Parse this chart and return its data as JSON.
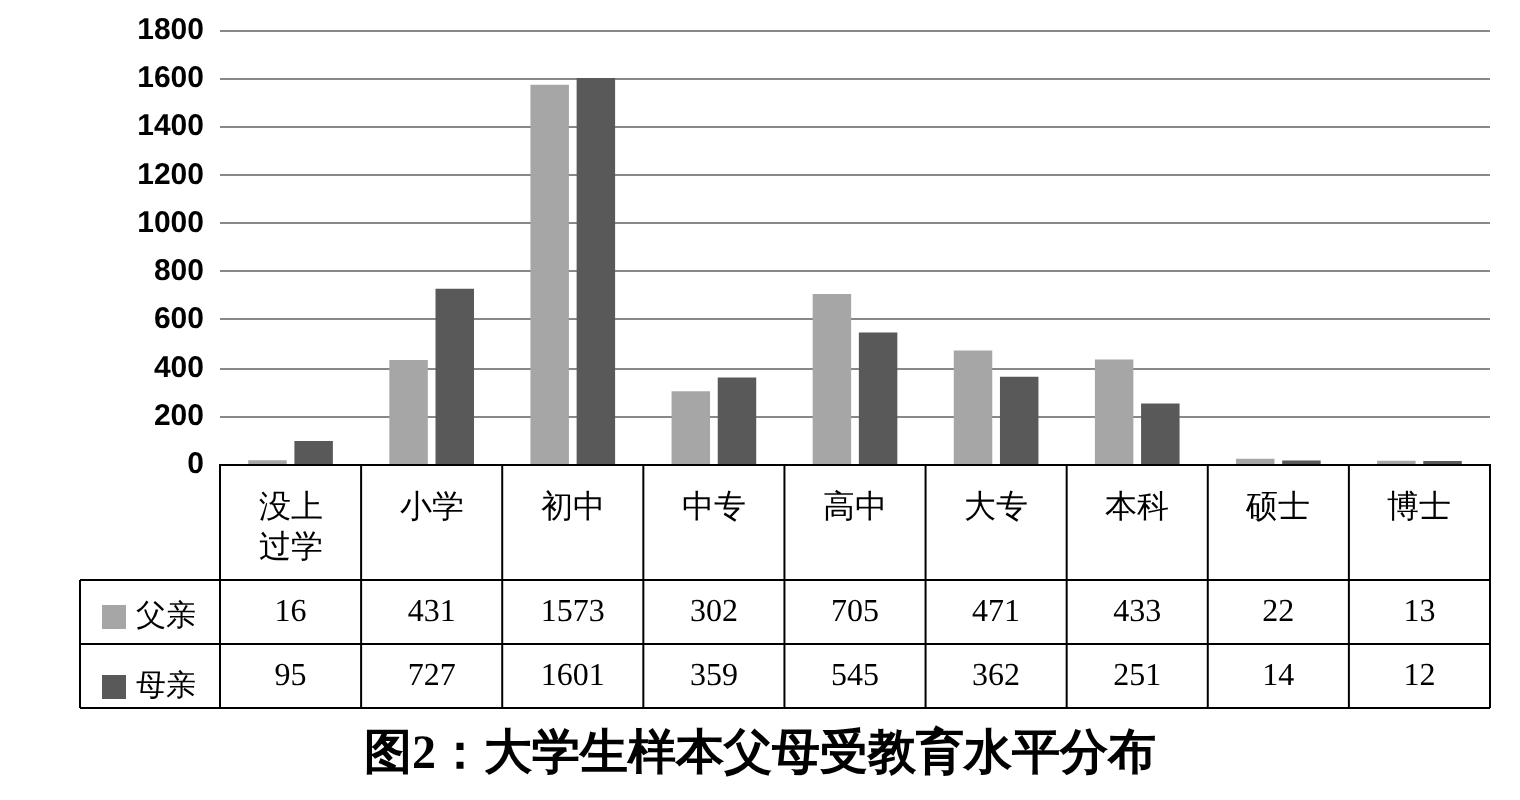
{
  "chart_data": {
    "type": "bar",
    "title": "图2：大学生样本父母受教育水平分布",
    "categories": [
      "没上过学",
      "小学",
      "初中",
      "中专",
      "高中",
      "大专",
      "本科",
      "硕士",
      "博士"
    ],
    "series": [
      {
        "name": "父亲",
        "color": "#a6a6a6",
        "values": [
          16,
          431,
          1573,
          302,
          705,
          471,
          433,
          22,
          13
        ]
      },
      {
        "name": "母亲",
        "color": "#595959",
        "values": [
          95,
          727,
          1601,
          359,
          545,
          362,
          251,
          14,
          12
        ]
      }
    ],
    "ylim": [
      0,
      1800
    ],
    "yticks": [
      0,
      200,
      400,
      600,
      800,
      1000,
      1200,
      1400,
      1600,
      1800
    ],
    "grid": "y",
    "legend": "bottom left",
    "data_labels": true
  }
}
